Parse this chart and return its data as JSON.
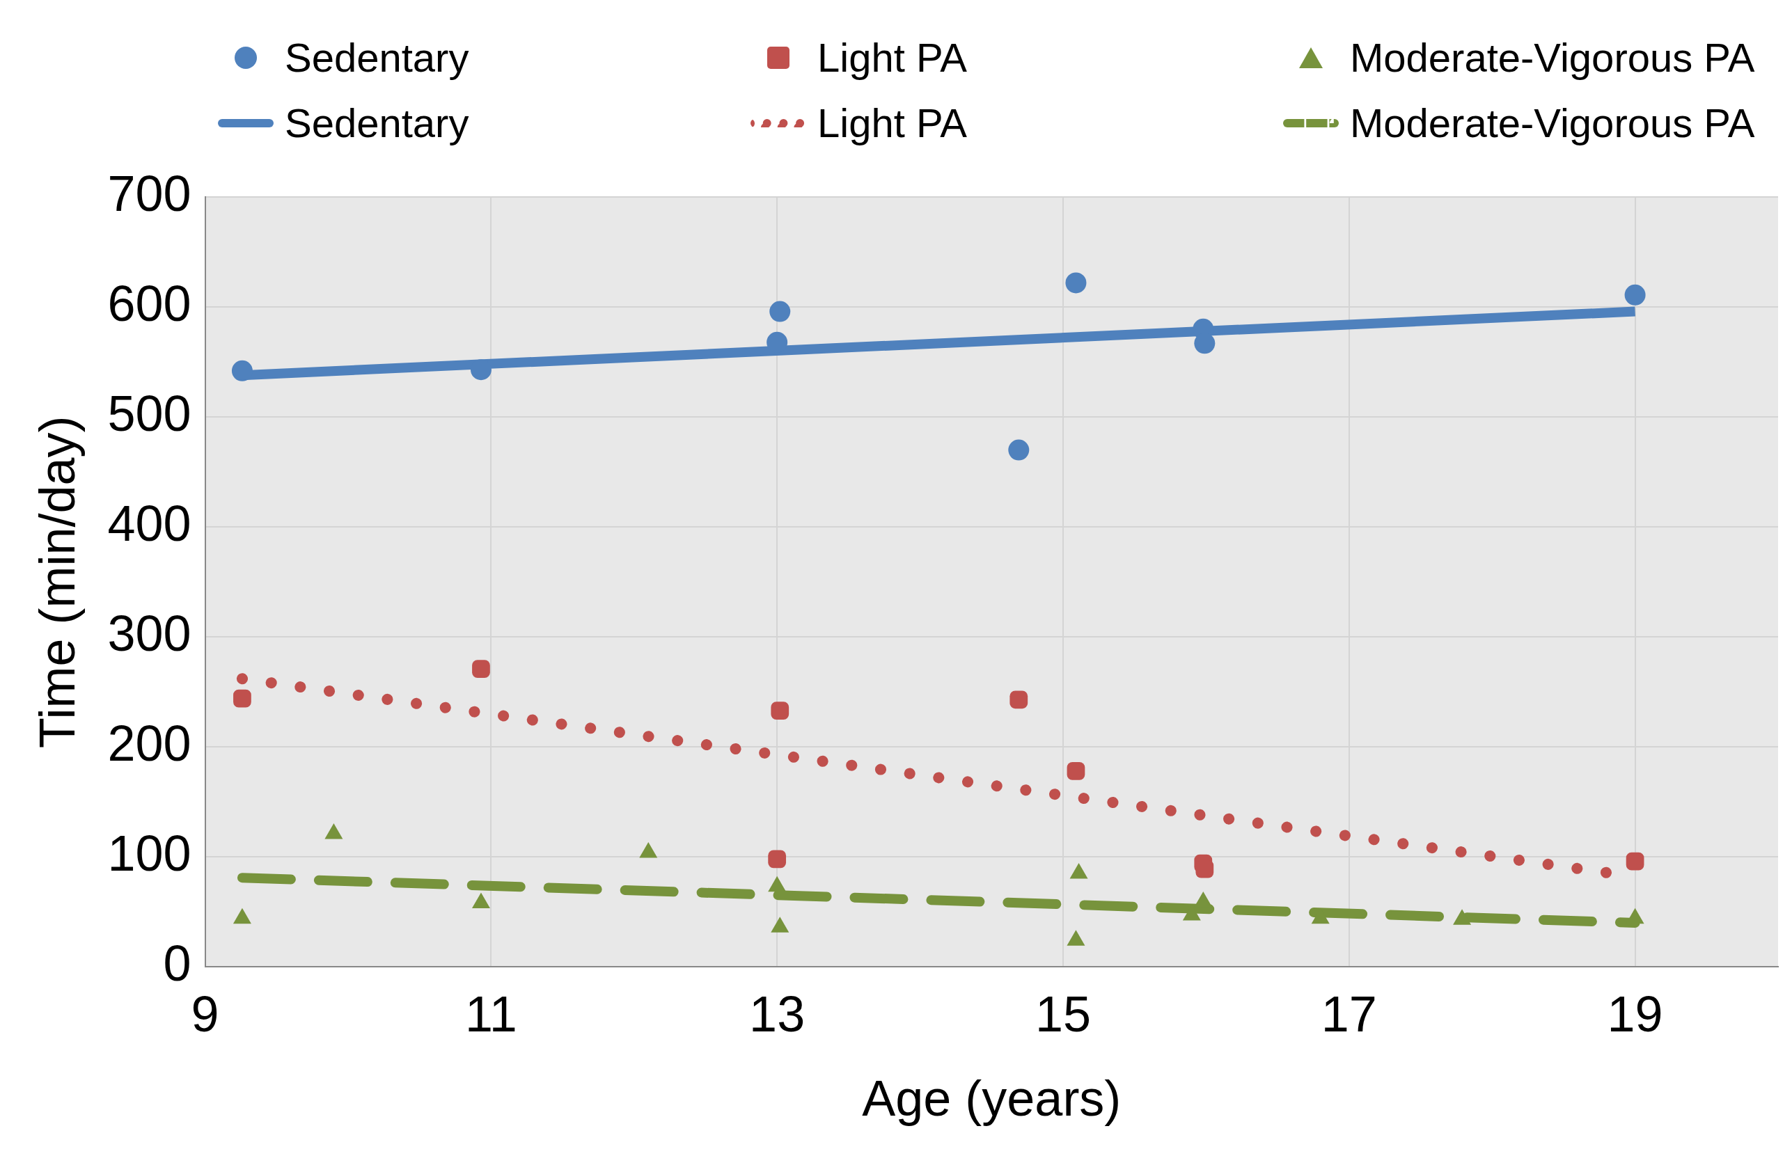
{
  "chart_data": {
    "type": "scatter",
    "xlabel": "Age (years)",
    "ylabel": "Time (min/day)",
    "xlim": [
      9,
      20
    ],
    "xticks": [
      9,
      11,
      13,
      15,
      17,
      19
    ],
    "ylim": [
      0,
      700
    ],
    "yticks": [
      0,
      100,
      200,
      300,
      400,
      500,
      600,
      700
    ],
    "grid": true,
    "legend": "top",
    "series": [
      {
        "name": "Sedentary",
        "type": "scatter",
        "marker": "circle",
        "color": "#4f81bd",
        "x": [
          9.26,
          10.93,
          13.02,
          13.0,
          15.09,
          14.69,
          15.98,
          15.99,
          19.0
        ],
        "values": [
          542,
          543,
          596,
          568,
          622,
          470,
          580,
          567,
          611
        ]
      },
      {
        "name": "Light PA",
        "type": "scatter",
        "marker": "square",
        "color": "#c0504d",
        "x": [
          9.26,
          10.93,
          13.02,
          14.69,
          15.09,
          13.0,
          15.98,
          15.99,
          19.0
        ],
        "values": [
          244,
          271,
          233,
          243,
          178,
          98,
          94,
          89,
          96
        ]
      },
      {
        "name": "Moderate-Vigorous PA",
        "type": "scatter",
        "marker": "triangle",
        "color": "#77933c",
        "x": [
          9.26,
          9.9,
          10.93,
          12.1,
          13.0,
          13.02,
          15.09,
          15.11,
          15.9,
          15.98,
          16.8,
          17.79,
          19.0
        ],
        "values": [
          44,
          121,
          58,
          104,
          73,
          36,
          24,
          85,
          47,
          59,
          44,
          43,
          44
        ]
      },
      {
        "name": "Sedentary",
        "type": "line",
        "line_style": "solid",
        "color": "#4f81bd",
        "x": [
          9.26,
          19.0
        ],
        "values": [
          538,
          596
        ]
      },
      {
        "name": "Light PA",
        "type": "line",
        "line_style": "dotted",
        "color": "#c0504d",
        "x": [
          9.26,
          19.0
        ],
        "values": [
          262,
          82
        ]
      },
      {
        "name": "Moderate-Vigorous PA",
        "type": "line",
        "line_style": "dashed",
        "color": "#77933c",
        "x": [
          9.26,
          19.0
        ],
        "values": [
          81,
          40
        ]
      }
    ]
  }
}
